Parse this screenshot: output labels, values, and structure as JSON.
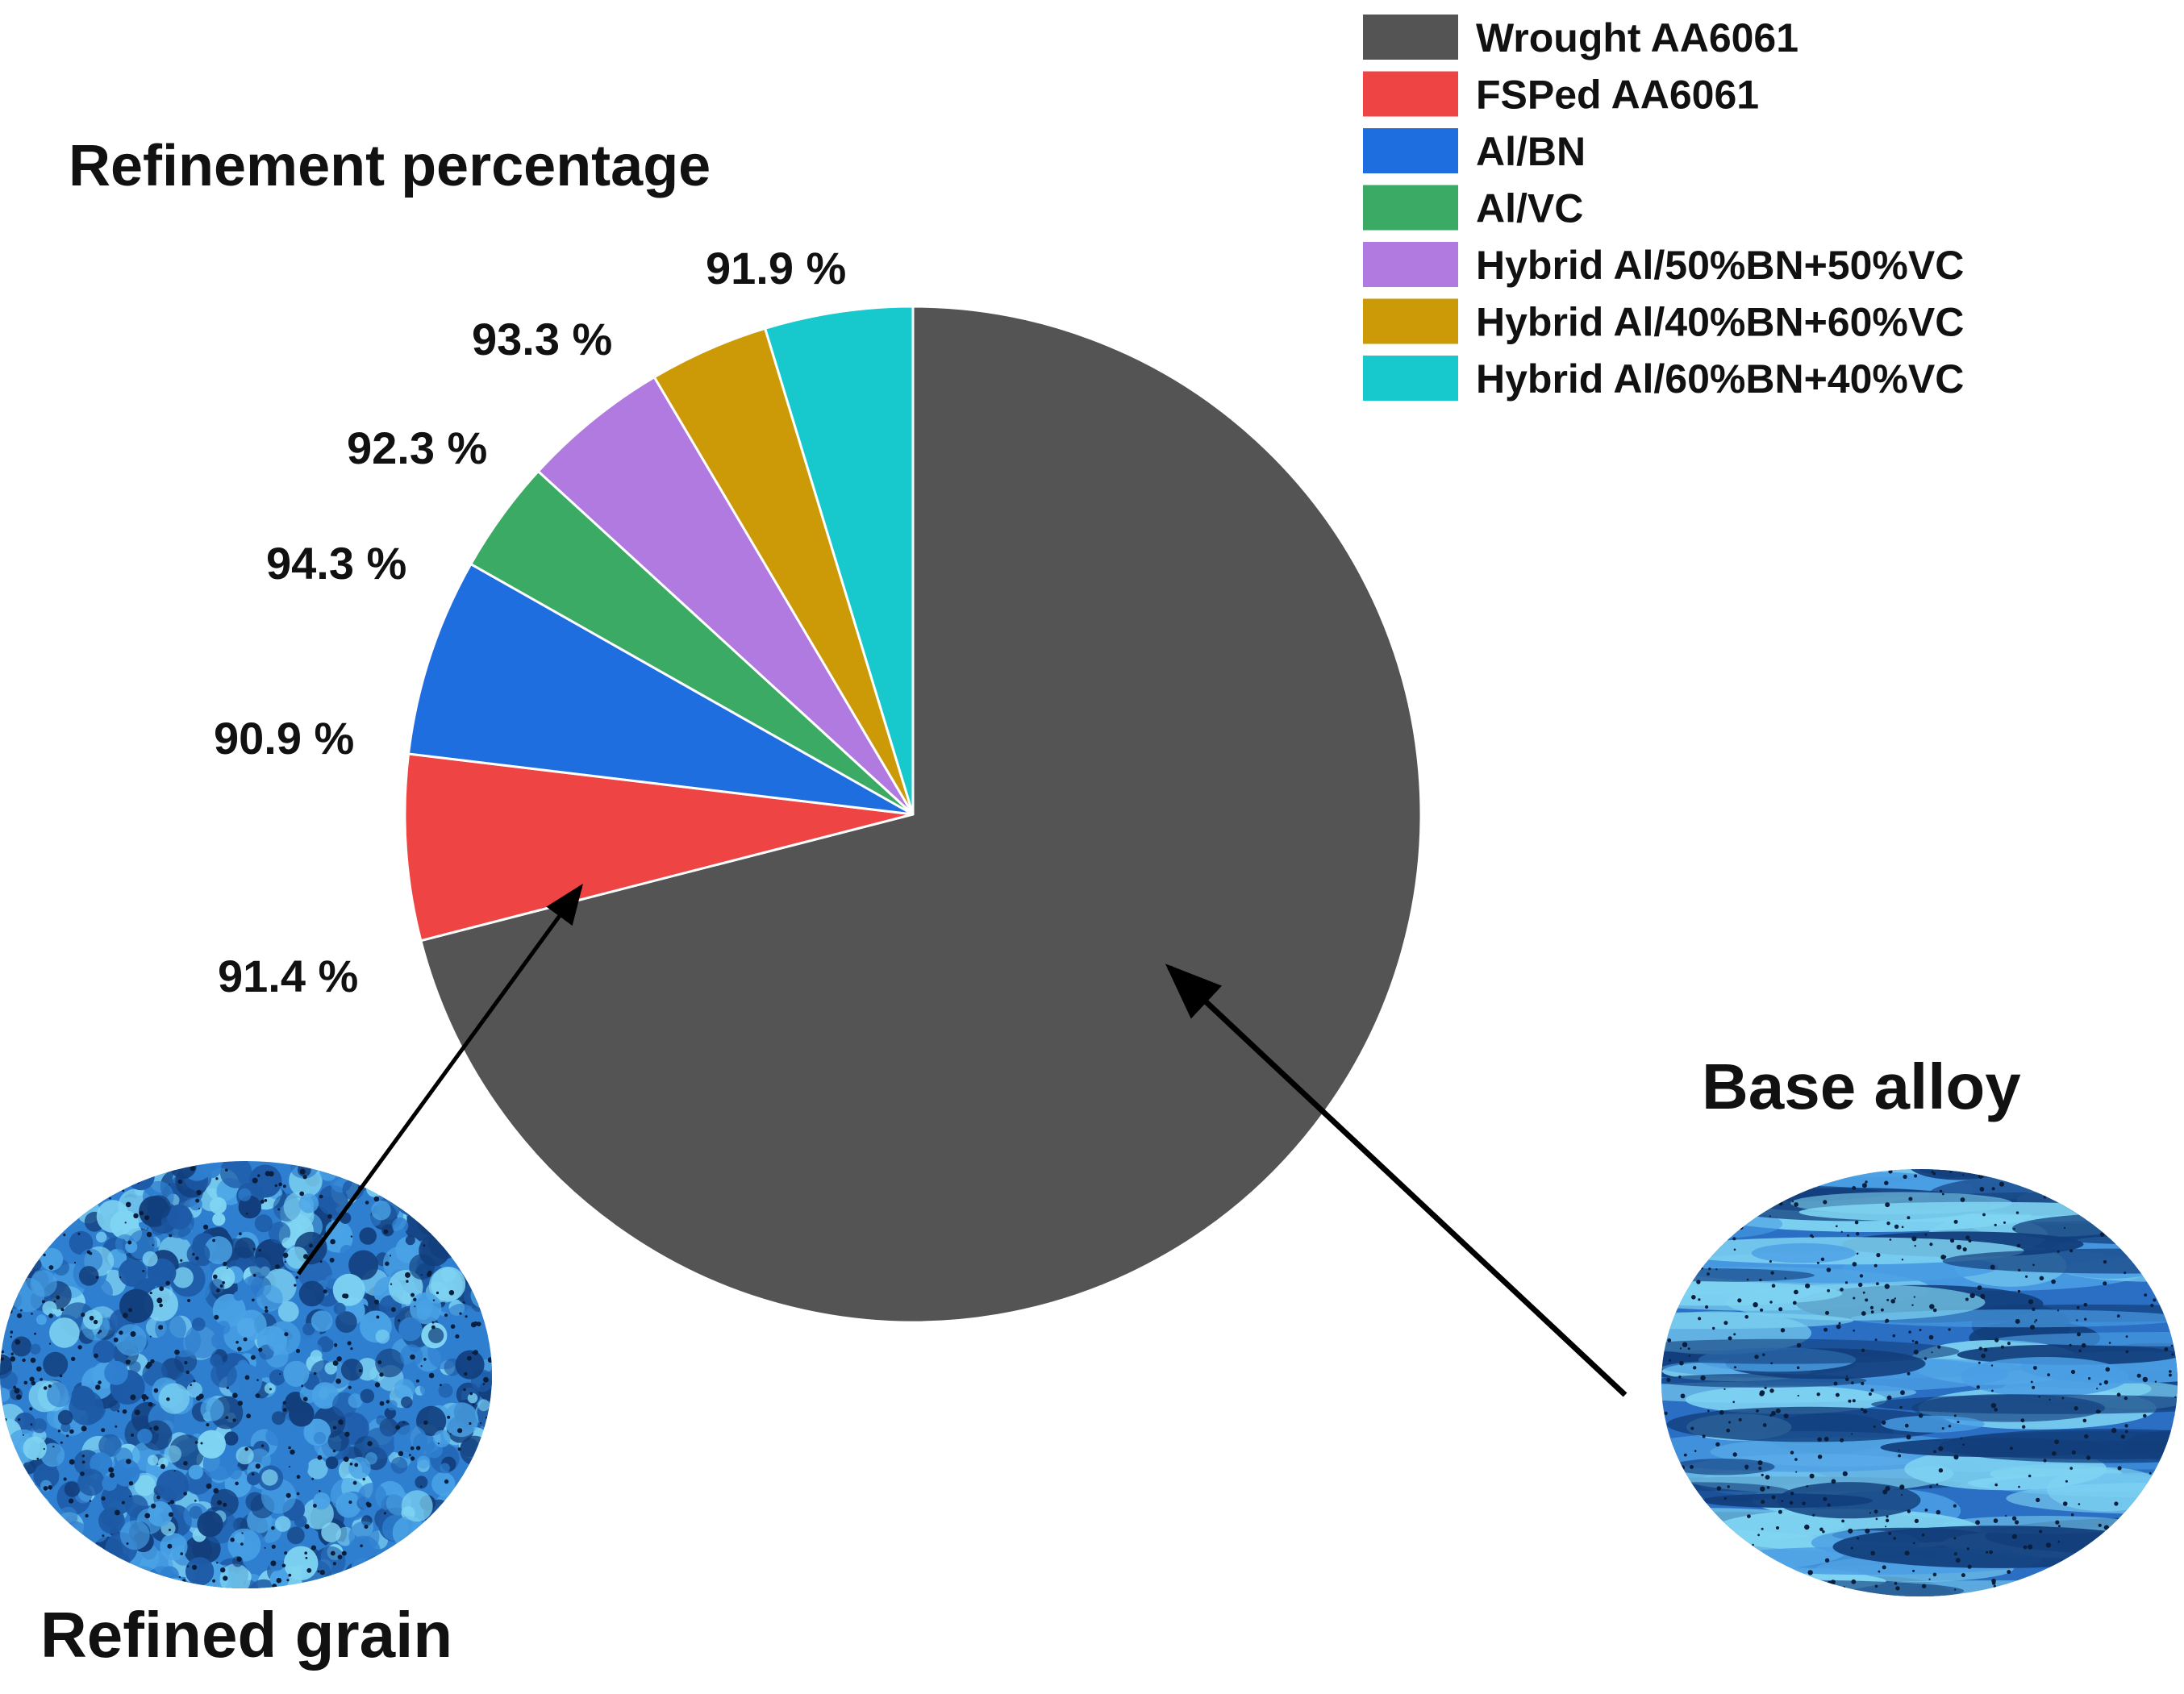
{
  "chart_data": {
    "type": "pie",
    "title": "Refinement percentage",
    "slices": [
      {
        "legend": "Wrought AA6061",
        "value": 71.0,
        "color": "#545454",
        "label": ""
      },
      {
        "legend": "FSPed AA6061",
        "value": 5.9,
        "color": "#ef4444",
        "label": "91.4 %"
      },
      {
        "legend": "Al/BN",
        "value": 6.3,
        "color": "#1f6ee0",
        "label": "90.9 %"
      },
      {
        "legend": "Al/VC",
        "value": 3.6,
        "color": "#3aaa64",
        "label": "94.3 %"
      },
      {
        "legend": "Hybrid Al/50%BN+50%VC",
        "value": 4.7,
        "color": "#b07ae0",
        "label": "92.3 %"
      },
      {
        "legend": "Hybrid Al/40%BN+60%VC",
        "value": 3.8,
        "color": "#cc9a06",
        "label": "93.3 %"
      },
      {
        "legend": "Hybrid Al/60%BN+40%VC",
        "value": 4.7,
        "color": "#17c8cc",
        "label": "91.9 %"
      }
    ],
    "legend_position": "top-right"
  },
  "annotations": {
    "refined_label": "Refined grain",
    "base_label": "Base alloy"
  },
  "micrograph_colors": {
    "dark": "#123e7c",
    "mid": "#2f7fd0",
    "light": "#7fd4f2"
  }
}
